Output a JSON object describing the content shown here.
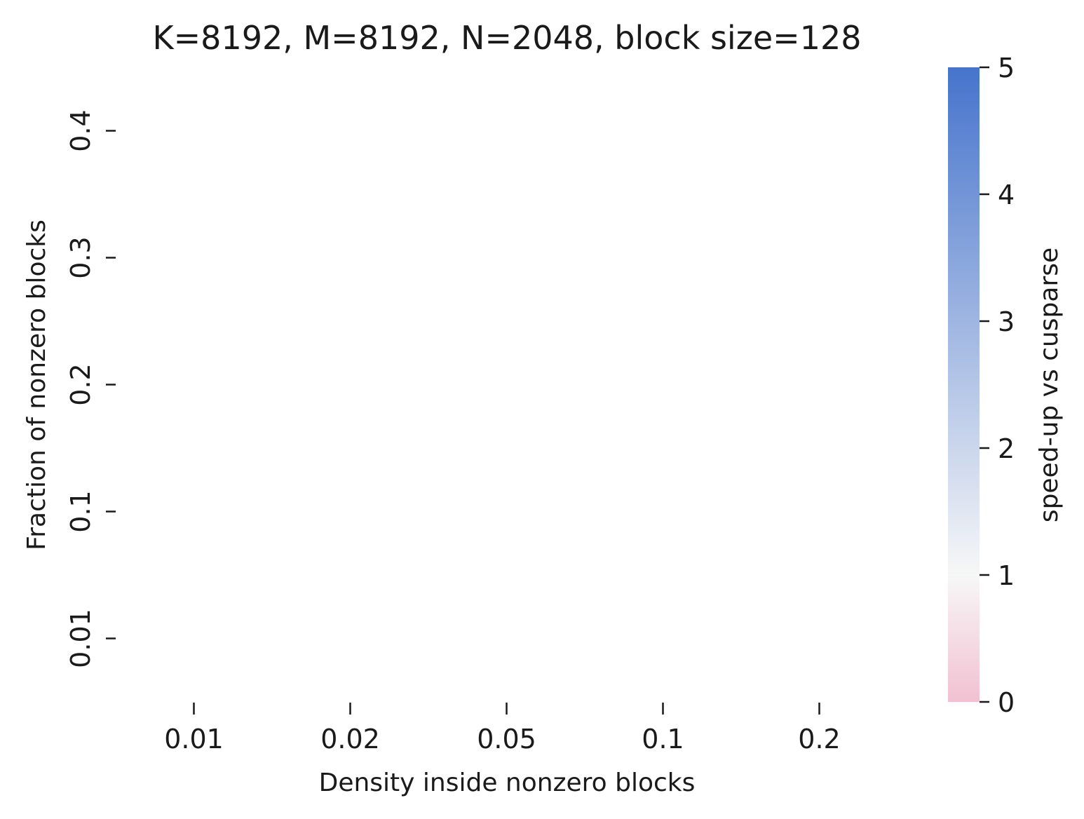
{
  "chart_data": {
    "type": "heatmap",
    "title": "K=8192, M=8192, N=2048, block size=128",
    "xlabel": "Density inside nonzero blocks",
    "ylabel": "Fraction of nonzero blocks",
    "x_categories": [
      "0.01",
      "0.02",
      "0.05",
      "0.1",
      "0.2"
    ],
    "y_categories": [
      "0.4",
      "0.3",
      "0.2",
      "0.1",
      "0.01"
    ],
    "values": [],
    "grid": false,
    "colorbar": {
      "label": "speed-up vs cusparse",
      "range": [
        0,
        5
      ],
      "center": 1,
      "ticks": [
        "0",
        "1",
        "2",
        "3",
        "4",
        "5"
      ],
      "colors": {
        "min": "#f2c1d1",
        "center": "#f7f7f7",
        "max": "#4674cc"
      }
    }
  }
}
